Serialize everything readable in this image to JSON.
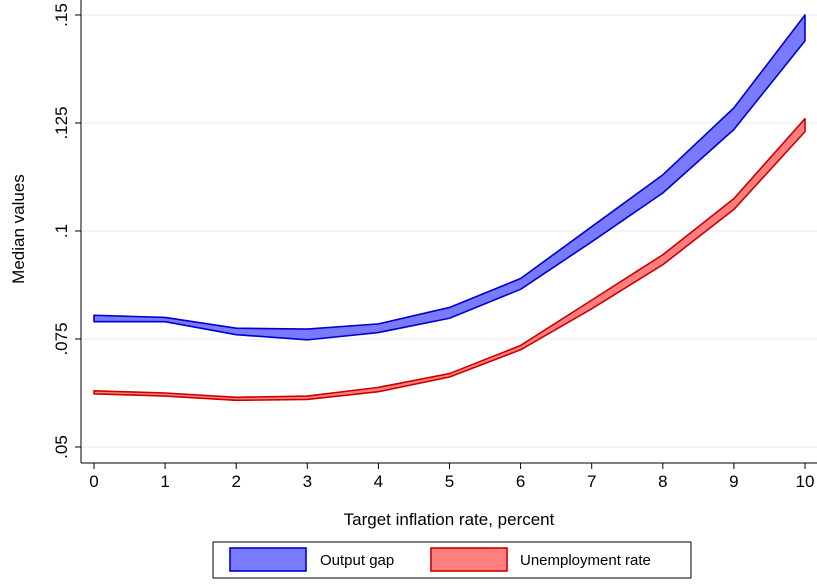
{
  "chart_data": {
    "type": "area",
    "title": "",
    "xlabel": "Target inflation rate, percent",
    "ylabel": "Median values",
    "x": [
      0,
      1,
      2,
      3,
      4,
      5,
      6,
      7,
      8,
      9,
      10
    ],
    "xticks": [
      "0",
      "1",
      "2",
      "3",
      "4",
      "5",
      "6",
      "7",
      "8",
      "9",
      "10"
    ],
    "yticks": [
      {
        "value": 0.05,
        "label": ".05"
      },
      {
        "value": 0.075,
        "label": ".075"
      },
      {
        "value": 0.1,
        "label": ".1"
      },
      {
        "value": 0.125,
        "label": ".125"
      },
      {
        "value": 0.15,
        "label": ".15"
      }
    ],
    "xlim": [
      0,
      10
    ],
    "ylim": [
      0.05,
      0.15
    ],
    "grid": "horizontal",
    "legend_position": "bottom",
    "series": [
      {
        "name": "Output gap",
        "color": "#0000cc",
        "fill": "#7a7aff",
        "upper": [
          0.0805,
          0.08,
          0.0775,
          0.0773,
          0.0785,
          0.0823,
          0.089,
          0.101,
          0.113,
          0.1285,
          0.15
        ],
        "lower": [
          0.079,
          0.079,
          0.076,
          0.0748,
          0.0765,
          0.0798,
          0.0865,
          0.0975,
          0.1088,
          0.1235,
          0.144
        ]
      },
      {
        "name": "Unemployment rate",
        "color": "#cc0000",
        "fill": "#ff7f7f",
        "upper": [
          0.063,
          0.0625,
          0.0615,
          0.0618,
          0.0638,
          0.067,
          0.0735,
          0.084,
          0.0945,
          0.1075,
          0.126
        ],
        "lower": [
          0.0623,
          0.0618,
          0.0608,
          0.061,
          0.0628,
          0.0662,
          0.0725,
          0.082,
          0.0922,
          0.105,
          0.123
        ]
      }
    ]
  }
}
